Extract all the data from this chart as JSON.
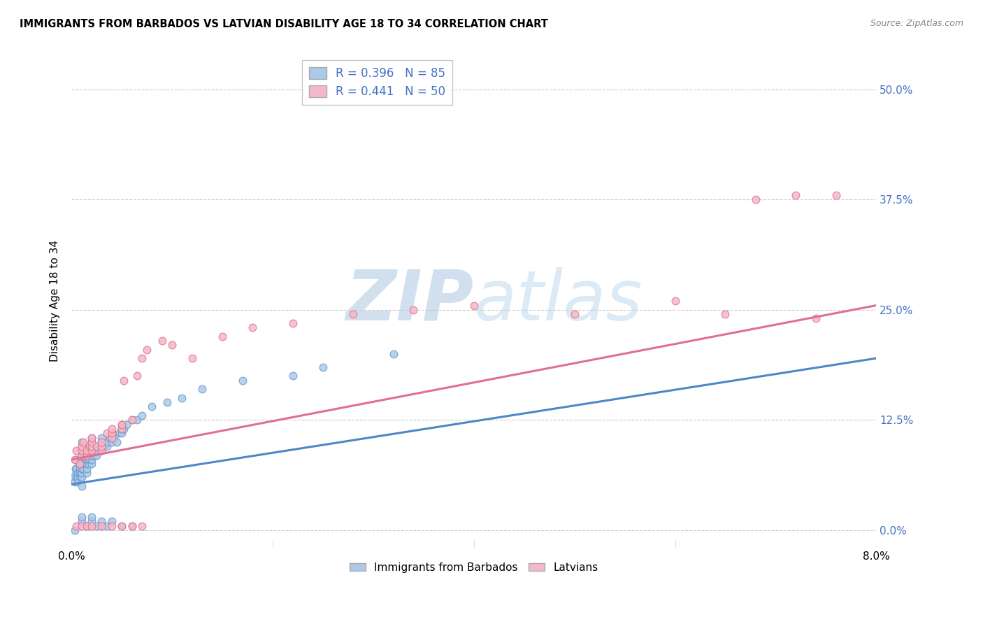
{
  "title": "IMMIGRANTS FROM BARBADOS VS LATVIAN DISABILITY AGE 18 TO 34 CORRELATION CHART",
  "source": "Source: ZipAtlas.com",
  "ylabel": "Disability Age 18 to 34",
  "ytick_labels": [
    "0.0%",
    "12.5%",
    "25.0%",
    "37.5%",
    "50.0%"
  ],
  "ytick_values": [
    0.0,
    0.125,
    0.25,
    0.375,
    0.5
  ],
  "xlim": [
    0.0,
    0.08
  ],
  "ylim": [
    -0.02,
    0.54
  ],
  "legend_R1": "R = 0.396",
  "legend_N1": "N = 85",
  "legend_R2": "R = 0.441",
  "legend_N2": "N = 50",
  "series1_color": "#adc9e8",
  "series1_edge": "#6699cc",
  "series2_color": "#f4b8c8",
  "series2_edge": "#e0708a",
  "line1_color": "#4f86c6",
  "line2_color": "#e07090",
  "watermark_color": "#ccdcee",
  "barbados_x": [
    0.0002,
    0.0003,
    0.0004,
    0.0004,
    0.0005,
    0.0005,
    0.0005,
    0.0006,
    0.0006,
    0.0007,
    0.0008,
    0.0008,
    0.0008,
    0.0009,
    0.0009,
    0.001,
    0.001,
    0.001,
    0.001,
    0.001,
    0.001,
    0.001,
    0.001,
    0.001,
    0.001,
    0.0012,
    0.0012,
    0.0013,
    0.0013,
    0.0014,
    0.0015,
    0.0015,
    0.0015,
    0.0015,
    0.0016,
    0.0017,
    0.0017,
    0.0018,
    0.0018,
    0.0019,
    0.002,
    0.002,
    0.002,
    0.002,
    0.002,
    0.002,
    0.002,
    0.0022,
    0.0023,
    0.0024,
    0.0025,
    0.0025,
    0.0026,
    0.003,
    0.003,
    0.003,
    0.003,
    0.0032,
    0.0035,
    0.0035,
    0.0038,
    0.004,
    0.004,
    0.004,
    0.0042,
    0.0045,
    0.0048,
    0.005,
    0.005,
    0.005,
    0.0052,
    0.0055,
    0.006,
    0.0065,
    0.007,
    0.008,
    0.0095,
    0.011,
    0.013,
    0.017,
    0.022,
    0.025,
    0.032
  ],
  "barbados_y": [
    0.06,
    0.055,
    0.07,
    0.08,
    0.06,
    0.065,
    0.07,
    0.06,
    0.065,
    0.055,
    0.065,
    0.07,
    0.075,
    0.06,
    0.065,
    0.05,
    0.06,
    0.065,
    0.07,
    0.075,
    0.08,
    0.085,
    0.09,
    0.095,
    0.1,
    0.07,
    0.075,
    0.08,
    0.085,
    0.075,
    0.065,
    0.07,
    0.075,
    0.08,
    0.085,
    0.075,
    0.08,
    0.08,
    0.085,
    0.085,
    0.075,
    0.08,
    0.085,
    0.09,
    0.095,
    0.1,
    0.105,
    0.085,
    0.09,
    0.09,
    0.085,
    0.09,
    0.095,
    0.09,
    0.095,
    0.1,
    0.105,
    0.095,
    0.095,
    0.1,
    0.105,
    0.1,
    0.105,
    0.11,
    0.105,
    0.1,
    0.11,
    0.11,
    0.115,
    0.12,
    0.115,
    0.12,
    0.125,
    0.125,
    0.13,
    0.14,
    0.145,
    0.15,
    0.16,
    0.17,
    0.175,
    0.185,
    0.2
  ],
  "barbados_x2": [
    0.0003,
    0.001,
    0.001,
    0.0015,
    0.002,
    0.002,
    0.003,
    0.003,
    0.0035,
    0.004,
    0.005,
    0.006,
    0.0025
  ],
  "barbados_y2": [
    0.0,
    0.01,
    0.015,
    0.005,
    0.01,
    0.015,
    0.005,
    0.01,
    0.005,
    0.01,
    0.005,
    0.005,
    0.005
  ],
  "latvian_x": [
    0.0003,
    0.0005,
    0.0008,
    0.001,
    0.001,
    0.001,
    0.0012,
    0.0015,
    0.0015,
    0.0018,
    0.002,
    0.002,
    0.002,
    0.002,
    0.0025,
    0.003,
    0.003,
    0.003,
    0.0035,
    0.004,
    0.004,
    0.004,
    0.005,
    0.005,
    0.0052,
    0.006,
    0.0065,
    0.007,
    0.0075,
    0.009,
    0.01,
    0.012,
    0.015,
    0.018,
    0.022,
    0.028,
    0.034,
    0.04,
    0.05,
    0.06,
    0.065,
    0.068,
    0.072,
    0.074,
    0.076
  ],
  "latvian_y": [
    0.08,
    0.09,
    0.075,
    0.085,
    0.09,
    0.095,
    0.1,
    0.085,
    0.09,
    0.095,
    0.09,
    0.095,
    0.1,
    0.105,
    0.095,
    0.09,
    0.095,
    0.1,
    0.11,
    0.105,
    0.11,
    0.115,
    0.115,
    0.12,
    0.17,
    0.125,
    0.175,
    0.195,
    0.205,
    0.215,
    0.21,
    0.195,
    0.22,
    0.23,
    0.235,
    0.245,
    0.25,
    0.255,
    0.245,
    0.26,
    0.245,
    0.375,
    0.38,
    0.24,
    0.38
  ],
  "latvian_x2": [
    0.0005,
    0.001,
    0.0015,
    0.002,
    0.003,
    0.004,
    0.005,
    0.006,
    0.007
  ],
  "latvian_y2": [
    0.005,
    0.005,
    0.005,
    0.005,
    0.005,
    0.005,
    0.005,
    0.005,
    0.005
  ],
  "blue_line_x": [
    0.0,
    0.08
  ],
  "blue_line_y": [
    0.052,
    0.195
  ],
  "pink_line_x": [
    0.0,
    0.08
  ],
  "pink_line_y": [
    0.08,
    0.255
  ]
}
